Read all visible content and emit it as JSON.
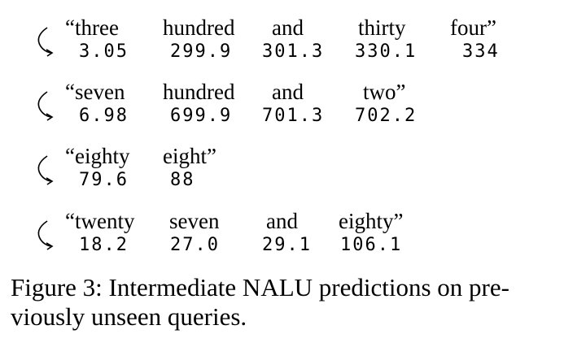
{
  "queries": [
    {
      "words": [
        "“three",
        "hundred",
        "and",
        "thirty",
        "four”"
      ],
      "predictions": [
        "3.05",
        "299.9",
        "301.3",
        "330.1",
        "334"
      ]
    },
    {
      "words": [
        "“seven",
        "hundred",
        "and",
        "two”"
      ],
      "predictions": [
        "6.98",
        "699.9",
        "701.3",
        "702.2"
      ]
    },
    {
      "words": [
        "“eighty",
        "eight”"
      ],
      "predictions": [
        "79.6",
        "88"
      ]
    },
    {
      "words": [
        "“twenty",
        "seven",
        "and",
        "eighty”"
      ],
      "predictions": [
        "18.2",
        "27.0",
        "29.1",
        "106.1"
      ]
    }
  ],
  "caption": "Figure 3: Intermediate NALU predictions on pre-viously unseen queries."
}
